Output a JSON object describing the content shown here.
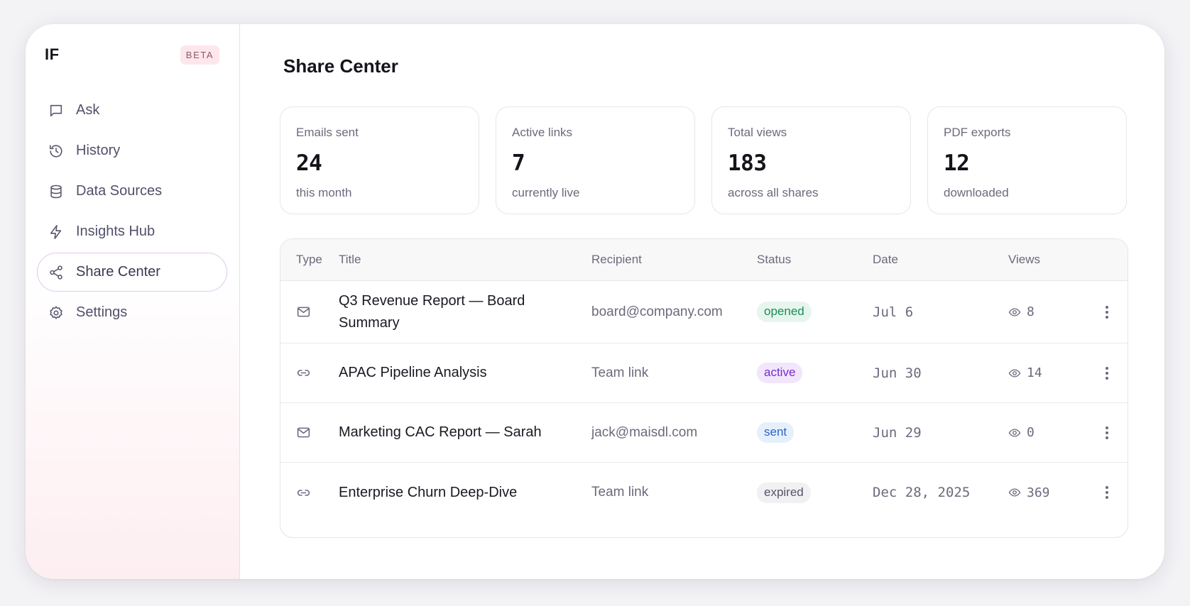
{
  "sidebar": {
    "brand": "IF",
    "badge": "BETA",
    "items": [
      {
        "label": "Ask",
        "icon": "chat-icon"
      },
      {
        "label": "History",
        "icon": "history-icon"
      },
      {
        "label": "Data Sources",
        "icon": "database-icon"
      },
      {
        "label": "Insights Hub",
        "icon": "lightning-icon"
      },
      {
        "label": "Share Center",
        "icon": "share-icon",
        "active": true
      },
      {
        "label": "Settings",
        "icon": "gear-icon"
      }
    ]
  },
  "main": {
    "title": "Share Center",
    "stats": [
      {
        "label": "Emails sent",
        "value": "24",
        "sub": "this month"
      },
      {
        "label": "Active links",
        "value": "7",
        "sub": "currently live"
      },
      {
        "label": "Total views",
        "value": "183",
        "sub": "across all shares"
      },
      {
        "label": "PDF exports",
        "value": "12",
        "sub": "downloaded"
      }
    ],
    "table": {
      "headers": {
        "type": "Type",
        "title": "Title",
        "recipient": "Recipient",
        "status": "Status",
        "date": "Date",
        "views": "Views"
      },
      "rows": [
        {
          "type": "mail-icon",
          "title": "Q3 Revenue Report — Board Summary",
          "recipient": "board@company.com",
          "status": "opened",
          "date": "Jul 6",
          "views": "8"
        },
        {
          "type": "link-icon",
          "title": "APAC Pipeline Analysis",
          "recipient": "Team link",
          "status": "active",
          "date": "Jun 30",
          "views": "14"
        },
        {
          "type": "mail-icon",
          "title": "Marketing CAC Report — Sarah",
          "recipient": "jack@maisdl.com",
          "status": "sent",
          "date": "Jun 29",
          "views": "0"
        },
        {
          "type": "link-icon",
          "title": "Enterprise Churn Deep-Dive",
          "recipient": "Team link",
          "status": "expired",
          "date": "Dec 28, 2025",
          "views": "369"
        }
      ]
    }
  },
  "colors": {
    "opened": "#1d8b54",
    "active": "#7a2bd0",
    "sent": "#2a64c9",
    "expired": "#55546a",
    "beta_bg": "#fde6ec"
  }
}
